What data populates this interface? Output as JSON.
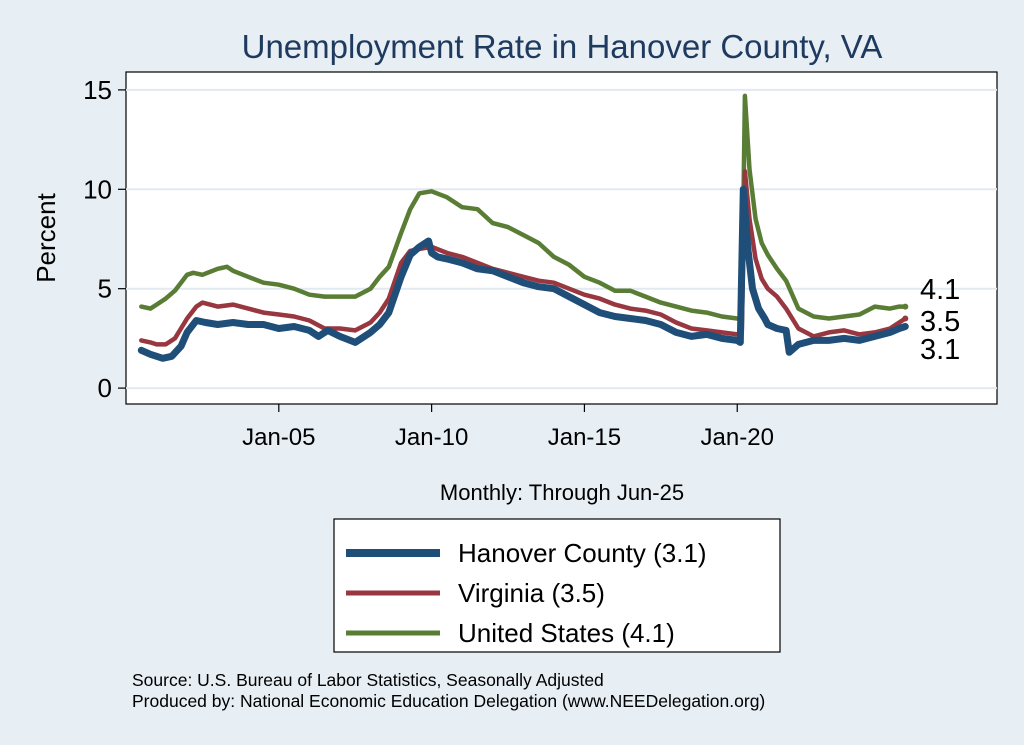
{
  "chart_data": {
    "type": "line",
    "title": "Unemployment Rate in Hanover  County, VA",
    "ylabel": "Percent",
    "xlabel": "Monthly: Through Jun-25",
    "ylim": [
      -0.8,
      15.9
    ],
    "xlim": [
      2000.0,
      2028.5
    ],
    "yticks": [
      0,
      5,
      10,
      15
    ],
    "xticks": [
      {
        "x": 2005.0,
        "label": "Jan-05"
      },
      {
        "x": 2010.0,
        "label": "Jan-10"
      },
      {
        "x": 2015.0,
        "label": "Jan-15"
      },
      {
        "x": 2020.0,
        "label": "Jan-20"
      }
    ],
    "grid": true,
    "legend_position": "bottom",
    "series": [
      {
        "name": "United States (4.1)",
        "color": "#5a7d35",
        "end_label": "4.1",
        "x": [
          2000.5,
          2000.8,
          2001.0,
          2001.3,
          2001.6,
          2002.0,
          2002.2,
          2002.5,
          2003.0,
          2003.3,
          2003.5,
          2004.0,
          2004.5,
          2005.0,
          2005.5,
          2006.0,
          2006.5,
          2007.0,
          2007.5,
          2008.0,
          2008.3,
          2008.6,
          2009.0,
          2009.3,
          2009.6,
          2010.0,
          2010.5,
          2011.0,
          2011.5,
          2012.0,
          2012.5,
          2013.0,
          2013.5,
          2014.0,
          2014.5,
          2015.0,
          2015.5,
          2016.0,
          2016.5,
          2017.0,
          2017.5,
          2018.0,
          2018.5,
          2019.0,
          2019.5,
          2020.0,
          2020.15,
          2020.25,
          2020.4,
          2020.6,
          2020.8,
          2021.0,
          2021.3,
          2021.6,
          2022.0,
          2022.5,
          2023.0,
          2023.5,
          2024.0,
          2024.5,
          2025.0,
          2025.3,
          2025.5
        ],
        "y": [
          4.1,
          4.0,
          4.2,
          4.5,
          4.9,
          5.7,
          5.8,
          5.7,
          6.0,
          6.1,
          5.9,
          5.6,
          5.3,
          5.2,
          5.0,
          4.7,
          4.6,
          4.6,
          4.6,
          5.0,
          5.6,
          6.1,
          7.8,
          9.0,
          9.8,
          9.9,
          9.6,
          9.1,
          9.0,
          8.3,
          8.1,
          7.7,
          7.3,
          6.6,
          6.2,
          5.6,
          5.3,
          4.9,
          4.9,
          4.6,
          4.3,
          4.1,
          3.9,
          3.8,
          3.6,
          3.5,
          3.5,
          14.7,
          11.0,
          8.5,
          7.3,
          6.7,
          6.0,
          5.4,
          4.0,
          3.6,
          3.5,
          3.6,
          3.7,
          4.1,
          4.0,
          4.1,
          4.1
        ]
      },
      {
        "name": "Virginia (3.5)",
        "color": "#98373f",
        "end_label": "3.5",
        "x": [
          2000.5,
          2000.8,
          2001.0,
          2001.3,
          2001.6,
          2002.0,
          2002.3,
          2002.5,
          2003.0,
          2003.5,
          2004.0,
          2004.5,
          2005.0,
          2005.5,
          2006.0,
          2006.5,
          2007.0,
          2007.5,
          2008.0,
          2008.3,
          2008.6,
          2009.0,
          2009.3,
          2009.6,
          2010.0,
          2010.5,
          2011.0,
          2011.5,
          2012.0,
          2012.5,
          2013.0,
          2013.5,
          2014.0,
          2014.5,
          2015.0,
          2015.5,
          2016.0,
          2016.5,
          2017.0,
          2017.5,
          2018.0,
          2018.5,
          2019.0,
          2019.5,
          2020.0,
          2020.15,
          2020.25,
          2020.4,
          2020.6,
          2020.8,
          2021.0,
          2021.3,
          2021.6,
          2022.0,
          2022.5,
          2023.0,
          2023.5,
          2024.0,
          2024.5,
          2025.0,
          2025.3,
          2025.5
        ],
        "y": [
          2.4,
          2.3,
          2.2,
          2.2,
          2.5,
          3.5,
          4.1,
          4.3,
          4.1,
          4.2,
          4.0,
          3.8,
          3.7,
          3.6,
          3.4,
          3.0,
          3.0,
          2.9,
          3.3,
          3.8,
          4.5,
          6.3,
          6.9,
          7.0,
          7.1,
          6.8,
          6.6,
          6.3,
          6.0,
          5.8,
          5.6,
          5.4,
          5.3,
          5.0,
          4.7,
          4.5,
          4.2,
          4.0,
          3.9,
          3.7,
          3.3,
          3.0,
          2.9,
          2.8,
          2.7,
          2.8,
          10.9,
          8.5,
          6.5,
          5.5,
          5.0,
          4.6,
          4.0,
          3.0,
          2.6,
          2.8,
          2.9,
          2.7,
          2.8,
          3.0,
          3.3,
          3.5
        ]
      },
      {
        "name": "Hanover  County (3.1)",
        "color": "#1f4e79",
        "end_label": "3.1",
        "x": [
          2000.5,
          2000.8,
          2001.0,
          2001.2,
          2001.5,
          2001.8,
          2002.0,
          2002.3,
          2002.6,
          2003.0,
          2003.5,
          2004.0,
          2004.5,
          2005.0,
          2005.5,
          2006.0,
          2006.3,
          2006.6,
          2007.0,
          2007.5,
          2008.0,
          2008.3,
          2008.6,
          2009.0,
          2009.3,
          2009.6,
          2009.9,
          2010.0,
          2010.2,
          2010.5,
          2011.0,
          2011.5,
          2012.0,
          2012.5,
          2013.0,
          2013.5,
          2014.0,
          2014.5,
          2015.0,
          2015.5,
          2016.0,
          2016.5,
          2017.0,
          2017.5,
          2018.0,
          2018.5,
          2019.0,
          2019.5,
          2020.0,
          2020.1,
          2020.2,
          2020.35,
          2020.5,
          2020.7,
          2020.9,
          2021.0,
          2021.3,
          2021.6,
          2021.7,
          2022.0,
          2022.5,
          2023.0,
          2023.5,
          2024.0,
          2024.5,
          2025.0,
          2025.3,
          2025.5
        ],
        "y": [
          1.9,
          1.7,
          1.6,
          1.5,
          1.6,
          2.1,
          2.8,
          3.4,
          3.3,
          3.2,
          3.3,
          3.2,
          3.2,
          3.0,
          3.1,
          2.9,
          2.6,
          2.9,
          2.6,
          2.3,
          2.8,
          3.2,
          3.8,
          5.6,
          6.7,
          7.1,
          7.4,
          6.8,
          6.6,
          6.5,
          6.3,
          6.0,
          5.9,
          5.6,
          5.3,
          5.1,
          5.0,
          4.6,
          4.2,
          3.8,
          3.6,
          3.5,
          3.4,
          3.2,
          2.8,
          2.6,
          2.7,
          2.5,
          2.4,
          2.3,
          10.0,
          7.0,
          5.0,
          4.0,
          3.5,
          3.2,
          3.0,
          2.9,
          1.8,
          2.2,
          2.4,
          2.4,
          2.5,
          2.4,
          2.6,
          2.8,
          3.0,
          3.1
        ]
      }
    ],
    "legend": [
      {
        "label": "Hanover  County (3.1)",
        "color": "#1f4e79"
      },
      {
        "label": "Virginia (3.5)",
        "color": "#98373f"
      },
      {
        "label": "United States (4.1)",
        "color": "#5a7d35"
      }
    ]
  },
  "footer": {
    "source": "Source: U.S. Bureau of Labor Statistics, Seasonally Adjusted",
    "produced_by": "Produced by: National Economic Education Delegation (www.NEEDelegation.org)"
  }
}
